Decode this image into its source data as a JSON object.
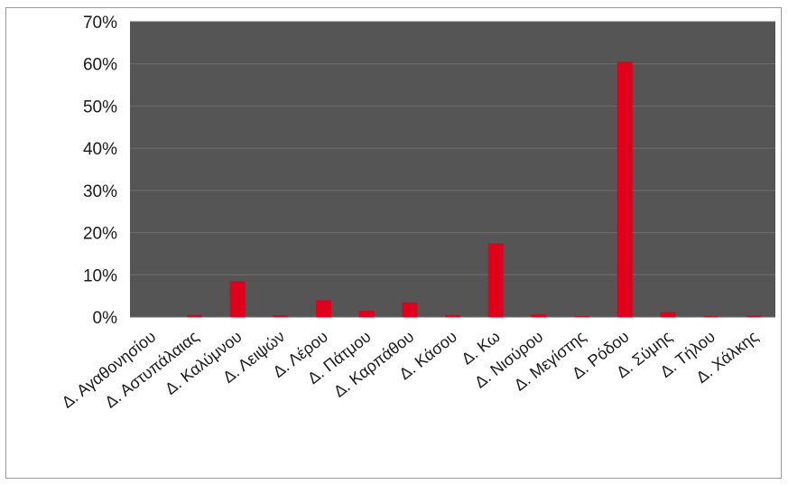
{
  "chart_data": {
    "type": "bar",
    "categories": [
      "Δ. Αγαθονησίου",
      "Δ. Αστυπάλαιας",
      "Δ. Καλύμνου",
      "Δ. Λειψών",
      "Δ. Λέρου",
      "Δ. Πάτμου",
      "Δ. Καρπάθου",
      "Δ. Κάσου",
      "Δ. Κω",
      "Δ. Νισύρου",
      "Δ. Μεγίστης",
      "Δ. Ρόδου",
      "Δ. Σύμης",
      "Δ. Τήλου",
      "Δ. Χάλκης"
    ],
    "values": [
      0.0,
      0.5,
      8.5,
      0.4,
      4.0,
      1.5,
      3.5,
      0.5,
      17.5,
      0.6,
      0.2,
      60.5,
      1.2,
      0.2,
      0.3
    ],
    "ylim": [
      0,
      70
    ],
    "yticks": [
      "0%",
      "10%",
      "20%",
      "30%",
      "40%",
      "50%",
      "60%",
      "70%"
    ],
    "grid": true,
    "colors": {
      "plot_bg": "#555555",
      "bar": "#e0001b",
      "grid": "#6e6e6e"
    }
  }
}
